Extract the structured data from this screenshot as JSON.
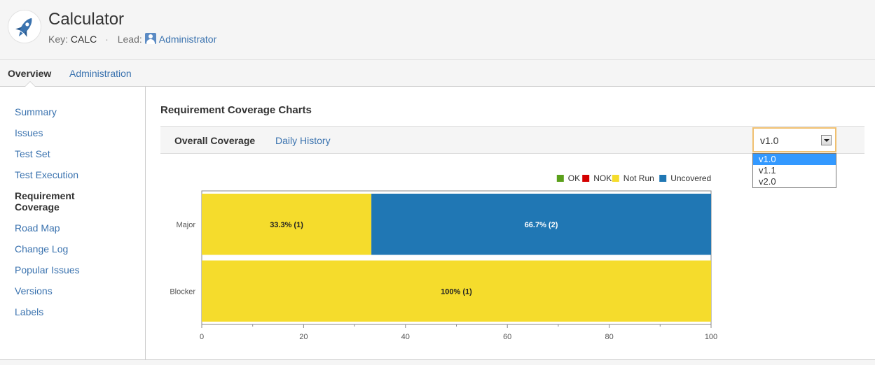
{
  "project": {
    "title": "Calculator",
    "key_label": "Key:",
    "key_value": "CALC",
    "lead_label": "Lead:",
    "lead_value": "Administrator"
  },
  "topnav": {
    "overview": "Overview",
    "administration": "Administration"
  },
  "sidebar": {
    "items": [
      {
        "label": "Summary"
      },
      {
        "label": "Issues"
      },
      {
        "label": "Test Set"
      },
      {
        "label": "Test Execution"
      },
      {
        "label": "Requirement Coverage",
        "line1": "Requirement",
        "line2": "Coverage"
      },
      {
        "label": "Road Map"
      },
      {
        "label": "Change Log"
      },
      {
        "label": "Popular Issues"
      },
      {
        "label": "Versions"
      },
      {
        "label": "Labels"
      }
    ]
  },
  "main": {
    "title": "Requirement Coverage Charts",
    "tabs": {
      "overall": "Overall Coverage",
      "daily": "Daily History"
    },
    "version_select": {
      "value": "v1.0",
      "options": [
        "v1.0",
        "v1.1",
        "v2.0"
      ]
    }
  },
  "colors": {
    "ok": "#5ba01b",
    "nok": "#d40000",
    "not_run": "#f5dc2c",
    "uncovered": "#2077b4",
    "link": "#3b73af"
  },
  "chart_data": {
    "type": "bar",
    "orientation": "horizontal",
    "stacked": true,
    "categories": [
      "Major",
      "Blocker"
    ],
    "series": [
      {
        "name": "OK",
        "color": "#5ba01b",
        "values": [
          0,
          0
        ],
        "labels": [
          "",
          ""
        ]
      },
      {
        "name": "NOK",
        "color": "#d40000",
        "values": [
          0,
          0
        ],
        "labels": [
          "",
          ""
        ]
      },
      {
        "name": "Not Run",
        "color": "#f5dc2c",
        "values": [
          33.3,
          100
        ],
        "labels": [
          "33.3% (1)",
          "100% (1)"
        ]
      },
      {
        "name": "Uncovered",
        "color": "#2077b4",
        "values": [
          66.7,
          0
        ],
        "labels": [
          "66.7% (2)",
          ""
        ]
      }
    ],
    "xlim": [
      0,
      100
    ],
    "xticks": [
      0,
      20,
      40,
      60,
      80,
      100
    ],
    "legend_position": "top-right",
    "grid": false
  }
}
